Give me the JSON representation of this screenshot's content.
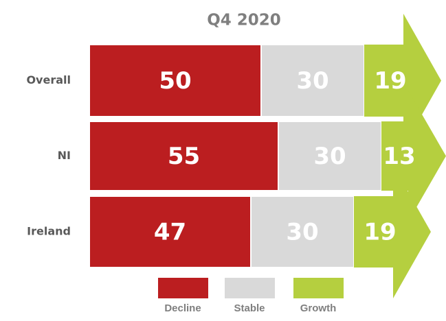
{
  "chart_data": {
    "type": "stacked-bar-arrow",
    "title": "Q4 2020",
    "categories": [
      "Overall",
      "NI",
      "Ireland"
    ],
    "series": [
      {
        "name": "Decline",
        "color": "#bb1e20",
        "values": [
          50,
          55,
          47
        ]
      },
      {
        "name": "Stable",
        "color": "#d9d9d9",
        "values": [
          30,
          30,
          30
        ]
      },
      {
        "name": "Growth",
        "color": "#b5cf3f",
        "values": [
          19,
          13,
          19
        ]
      }
    ]
  }
}
